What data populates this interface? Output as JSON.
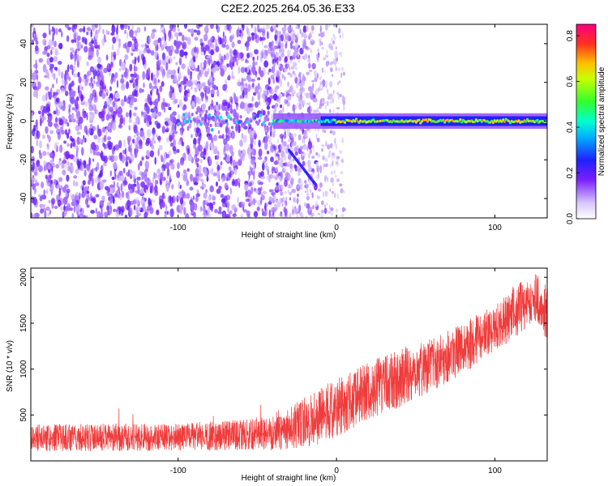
{
  "title": "C2E2.2025.264.05.36.E33",
  "chart_data": [
    {
      "type": "heatmap",
      "name": "spectrogram",
      "xlabel": "Height of straight line (km)",
      "ylabel": "Frequency (Hz)",
      "xlim": [
        -193,
        133
      ],
      "ylim": [
        -50,
        50
      ],
      "xticks": [
        -100,
        0,
        100
      ],
      "xtick_labels": [
        "-100",
        "0",
        "100"
      ],
      "yticks": [
        -40,
        -20,
        0,
        20,
        40
      ],
      "ytick_labels": [
        "-40",
        "-20",
        "0",
        "20",
        "40"
      ],
      "colorbar": {
        "label": "Normalized spectral amplitude",
        "range": [
          0.0,
          0.85
        ],
        "ticks": [
          0.0,
          0.2,
          0.4,
          0.6,
          0.8
        ],
        "tick_labels": [
          "0.0",
          "0.2",
          "0.4",
          "0.6",
          "0.8"
        ]
      },
      "features": {
        "noise_region_x": [
          -193,
          -5
        ],
        "sparse_noise_x": [
          -40,
          5
        ],
        "carrier_line": {
          "freq_hz": 0,
          "x_start": -100,
          "x_end": 133,
          "amplitude": [
            0.3,
            0.85
          ]
        },
        "descending_trace": {
          "x": [
            -30,
            -13
          ],
          "freq_hz": [
            -15,
            -33
          ]
        }
      }
    },
    {
      "type": "line",
      "name": "snr",
      "xlabel": "Height of straight line (km)",
      "ylabel": "SNR (10 * v/v)",
      "xlim": [
        -193,
        133
      ],
      "ylim": [
        0,
        2100
      ],
      "xticks": [
        -100,
        0,
        100
      ],
      "xtick_labels": [
        "-100",
        "0",
        "100"
      ],
      "yticks": [
        500,
        1000,
        1500,
        2000
      ],
      "ytick_labels": [
        "500",
        "1000",
        "1500",
        "2000"
      ],
      "color": "#f03c3c",
      "trend": {
        "x": [
          -193,
          -150,
          -100,
          -50,
          -35,
          -25,
          -15,
          0,
          20,
          40,
          60,
          80,
          100,
          115,
          125,
          133
        ],
        "mean": [
          250,
          255,
          260,
          290,
          330,
          380,
          450,
          580,
          760,
          900,
          1060,
          1230,
          1440,
          1650,
          1800,
          1600
        ],
        "spread": [
          150,
          150,
          150,
          170,
          220,
          260,
          300,
          320,
          320,
          320,
          300,
          280,
          260,
          280,
          300,
          300
        ]
      }
    }
  ]
}
